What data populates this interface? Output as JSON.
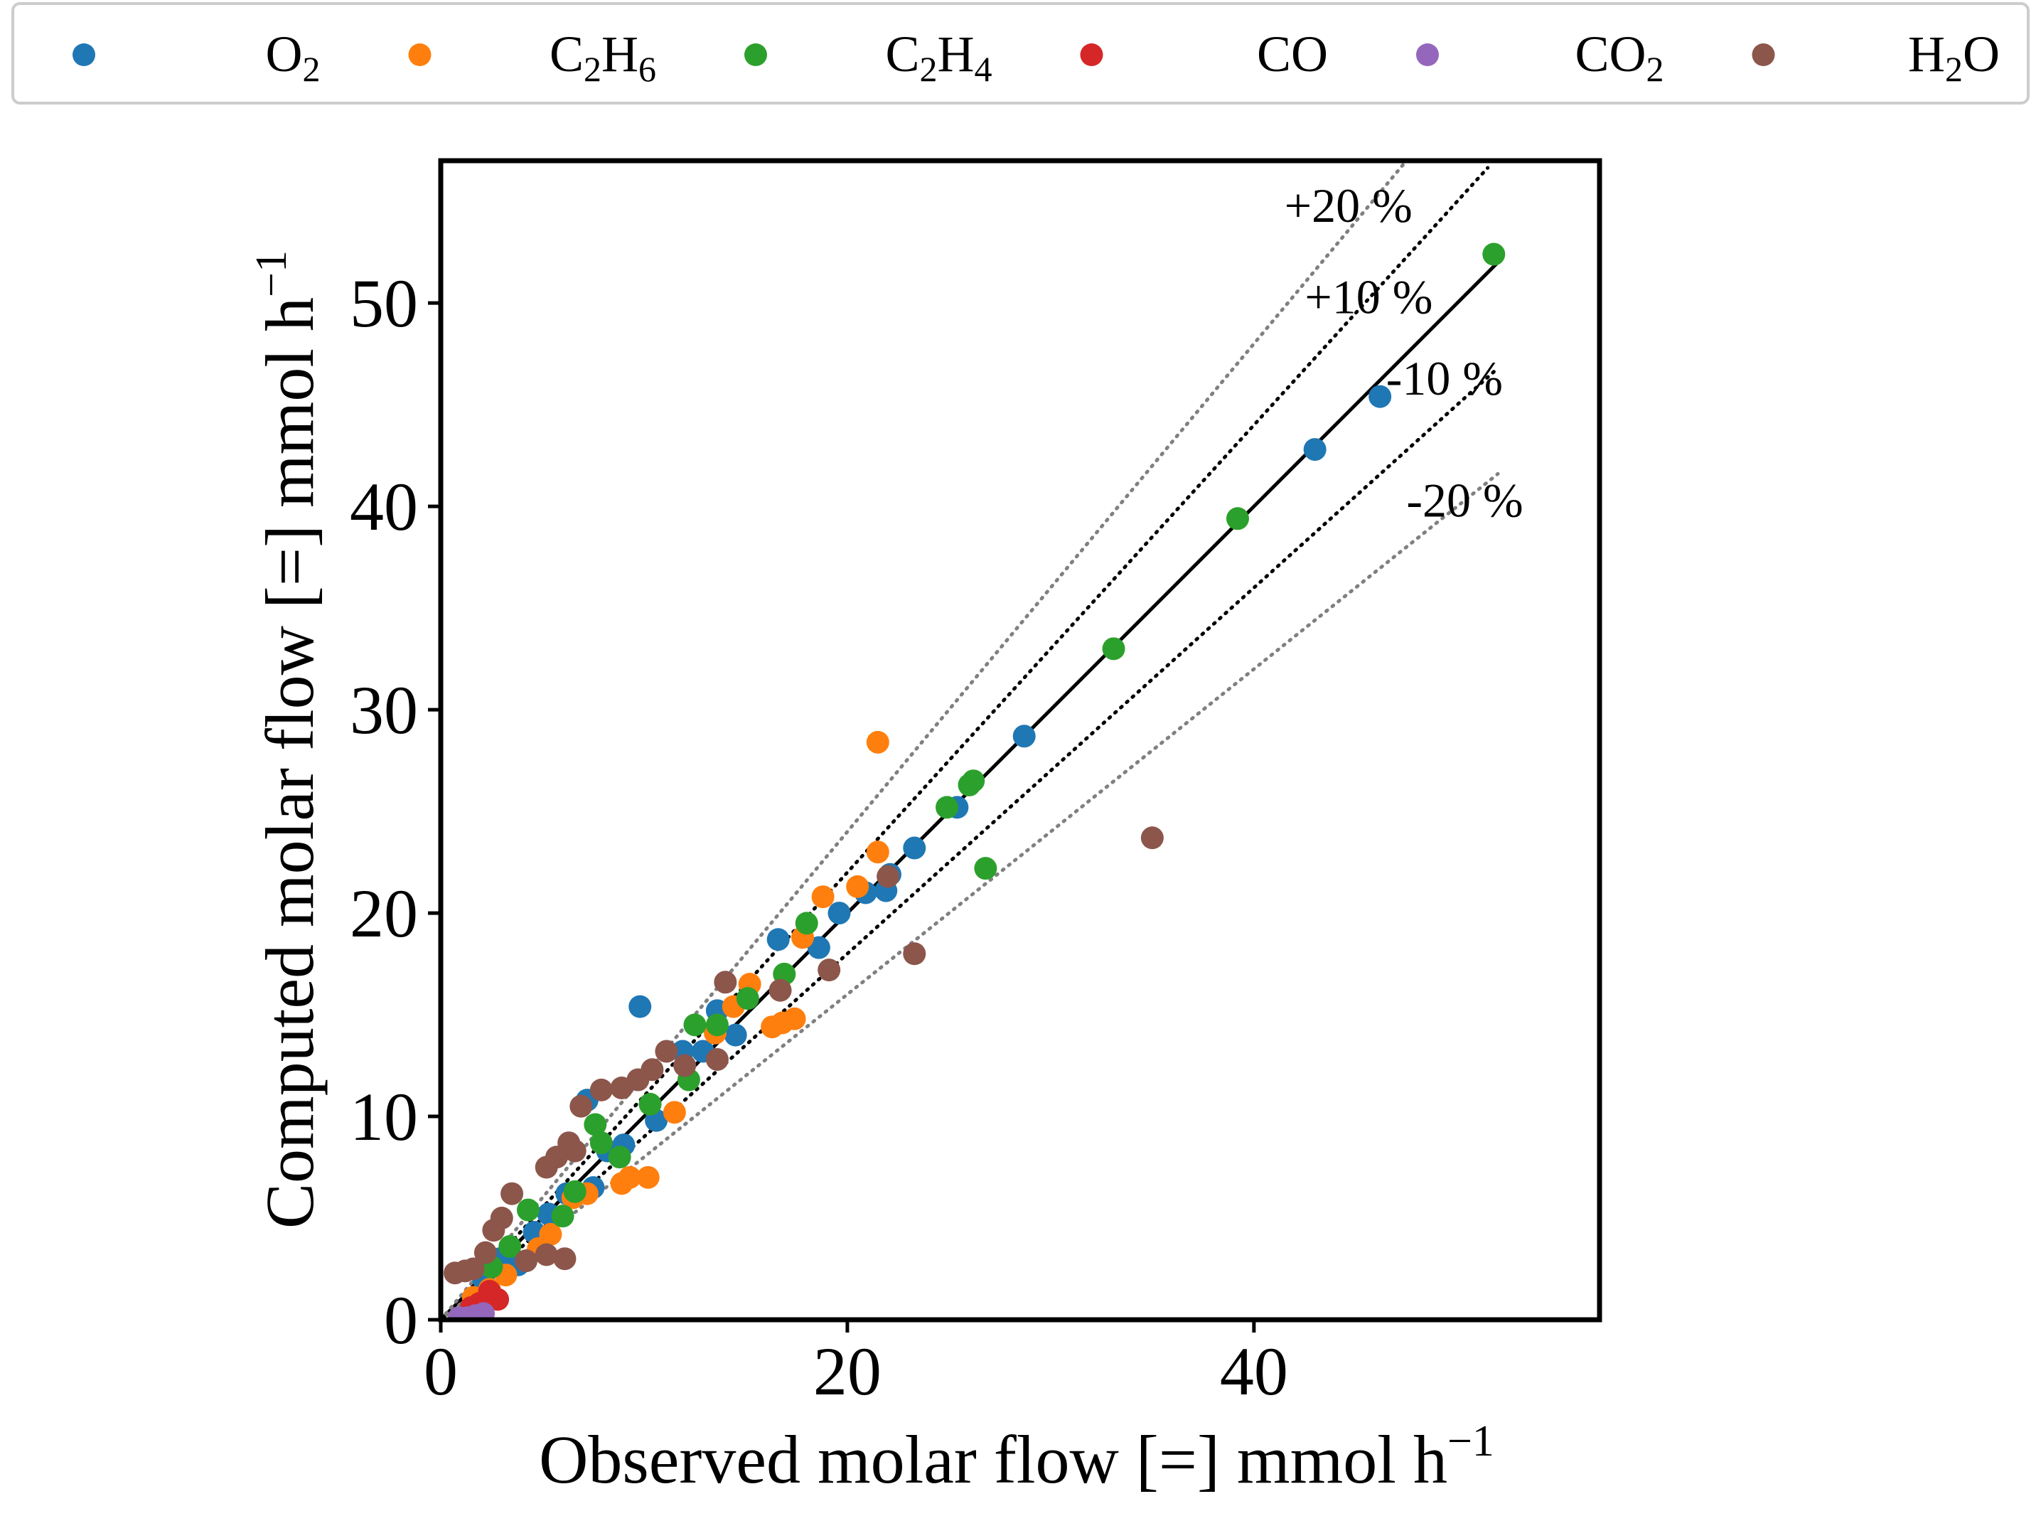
{
  "colors": {
    "O2": "#1f77b4",
    "C2H6": "#ff7f0e",
    "C2H4": "#2ca02c",
    "CO": "#d62728",
    "CO2": "#9467bd",
    "H2O": "#8c564b",
    "parity": "#000000",
    "band10": "#000000",
    "band20": "#808080"
  },
  "chart_data": {
    "type": "scatter",
    "title": "",
    "xlabel": {
      "main": "Observed molar flow [=] mmol h",
      "sup": "−1"
    },
    "ylabel": {
      "main": "Computed molar flow [=] mmol h",
      "sup": "−1"
    },
    "xlim": [
      0,
      57
    ],
    "ylim": [
      0,
      57
    ],
    "xticks": [
      0,
      20,
      40
    ],
    "yticks": [
      0,
      10,
      20,
      30,
      40,
      50
    ],
    "grid": false,
    "legend": {
      "placement": "top",
      "entries": [
        {
          "key": "O2",
          "base": "O",
          "parts": [
            [
              "O",
              ""
            ],
            [
              "2",
              "sub"
            ]
          ]
        },
        {
          "key": "C2H6",
          "parts": [
            [
              "C",
              ""
            ],
            [
              "2",
              "sub"
            ],
            [
              "H",
              ""
            ],
            [
              "6",
              "sub"
            ]
          ]
        },
        {
          "key": "C2H4",
          "parts": [
            [
              "C",
              ""
            ],
            [
              "2",
              "sub"
            ],
            [
              "H",
              ""
            ],
            [
              "4",
              "sub"
            ]
          ]
        },
        {
          "key": "CO",
          "parts": [
            [
              "CO",
              ""
            ]
          ]
        },
        {
          "key": "CO2",
          "parts": [
            [
              "CO",
              ""
            ],
            [
              "2",
              "sub"
            ]
          ]
        },
        {
          "key": "H2O",
          "parts": [
            [
              "H",
              ""
            ],
            [
              "2",
              "sub"
            ],
            [
              "O",
              ""
            ]
          ]
        }
      ]
    },
    "reference_lines": [
      {
        "name": "parity",
        "slope": 1.0,
        "style": "solid",
        "x_range": [
          0,
          52
        ]
      },
      {
        "name": "plus10",
        "slope": 1.1,
        "style": "dotted",
        "x_range": [
          0,
          51.5
        ],
        "label": "+10 %",
        "label_at": [
          42.5,
          49.5
        ]
      },
      {
        "name": "minus10",
        "slope": 0.9,
        "style": "dotted",
        "x_range": [
          0,
          52
        ],
        "label": "-10 %",
        "label_at": [
          46.5,
          45.5
        ]
      },
      {
        "name": "plus20",
        "slope": 1.2,
        "style": "dotted_gray",
        "x_range": [
          0,
          47.5
        ],
        "label": "+20 %",
        "label_at": [
          41.5,
          54.0
        ]
      },
      {
        "name": "minus20",
        "slope": 0.8,
        "style": "dotted_gray",
        "x_range": [
          0,
          52
        ],
        "label": "-20 %",
        "label_at": [
          47.5,
          39.5
        ]
      }
    ],
    "series": [
      {
        "name": "O2",
        "points": [
          [
            46.2,
            45.4
          ],
          [
            43.0,
            42.8
          ],
          [
            28.7,
            28.7
          ],
          [
            25.4,
            25.2
          ],
          [
            23.3,
            23.2
          ],
          [
            22.1,
            21.9
          ],
          [
            21.9,
            21.1
          ],
          [
            20.9,
            21.0
          ],
          [
            19.6,
            20.0
          ],
          [
            18.6,
            18.3
          ],
          [
            16.6,
            18.7
          ],
          [
            14.5,
            14.0
          ],
          [
            13.6,
            15.2
          ],
          [
            12.9,
            13.2
          ],
          [
            11.9,
            13.2
          ],
          [
            10.6,
            9.8
          ],
          [
            9.8,
            15.4
          ],
          [
            9.0,
            8.6
          ],
          [
            8.2,
            8.3
          ],
          [
            7.5,
            6.5
          ],
          [
            7.2,
            10.8
          ],
          [
            6.2,
            6.2
          ],
          [
            5.3,
            5.2
          ],
          [
            4.6,
            4.3
          ],
          [
            3.8,
            2.7
          ],
          [
            2.9,
            3.0
          ],
          [
            2.1,
            2.0
          ]
        ]
      },
      {
        "name": "C2H6",
        "points": [
          [
            21.5,
            28.4
          ],
          [
            21.5,
            23.0
          ],
          [
            20.5,
            21.3
          ],
          [
            18.8,
            20.8
          ],
          [
            17.8,
            18.8
          ],
          [
            17.4,
            14.8
          ],
          [
            16.8,
            14.6
          ],
          [
            16.3,
            14.4
          ],
          [
            15.2,
            16.5
          ],
          [
            14.4,
            15.4
          ],
          [
            13.5,
            14.1
          ],
          [
            11.5,
            10.2
          ],
          [
            10.2,
            7.0
          ],
          [
            9.3,
            7.0
          ],
          [
            8.9,
            6.7
          ],
          [
            7.2,
            6.2
          ],
          [
            6.5,
            6.0
          ],
          [
            5.4,
            4.2
          ],
          [
            4.8,
            3.5
          ],
          [
            3.2,
            2.2
          ],
          [
            2.4,
            1.5
          ],
          [
            1.6,
            1.1
          ]
        ]
      },
      {
        "name": "C2H4",
        "points": [
          [
            51.8,
            52.4
          ],
          [
            39.2,
            39.4
          ],
          [
            33.1,
            33.0
          ],
          [
            26.8,
            22.2
          ],
          [
            26.2,
            26.5
          ],
          [
            26.0,
            26.3
          ],
          [
            24.9,
            25.2
          ],
          [
            18.0,
            19.5
          ],
          [
            16.9,
            17.0
          ],
          [
            15.1,
            15.8
          ],
          [
            13.6,
            14.5
          ],
          [
            12.5,
            14.5
          ],
          [
            12.2,
            11.8
          ],
          [
            10.3,
            10.6
          ],
          [
            8.8,
            8.0
          ],
          [
            7.9,
            8.7
          ],
          [
            7.6,
            9.6
          ],
          [
            6.6,
            6.3
          ],
          [
            6.0,
            5.1
          ],
          [
            4.3,
            5.4
          ],
          [
            3.4,
            3.6
          ],
          [
            2.5,
            2.6
          ]
        ]
      },
      {
        "name": "CO",
        "points": [
          [
            2.8,
            1.0
          ],
          [
            2.4,
            1.4
          ],
          [
            1.9,
            0.8
          ],
          [
            1.5,
            0.6
          ]
        ]
      },
      {
        "name": "CO2",
        "points": [
          [
            2.1,
            0.3
          ],
          [
            1.7,
            0.2
          ],
          [
            1.3,
            0.1
          ],
          [
            0.9,
            0.1
          ]
        ]
      },
      {
        "name": "H2O",
        "points": [
          [
            35.0,
            23.7
          ],
          [
            23.3,
            18.0
          ],
          [
            22.0,
            21.8
          ],
          [
            19.1,
            17.2
          ],
          [
            16.7,
            16.2
          ],
          [
            14.0,
            16.6
          ],
          [
            13.6,
            12.8
          ],
          [
            12.0,
            12.5
          ],
          [
            11.1,
            13.2
          ],
          [
            10.4,
            12.3
          ],
          [
            9.7,
            11.8
          ],
          [
            8.9,
            11.4
          ],
          [
            7.9,
            11.3
          ],
          [
            6.9,
            10.5
          ],
          [
            6.6,
            8.3
          ],
          [
            6.3,
            8.7
          ],
          [
            5.7,
            8.0
          ],
          [
            5.2,
            7.5
          ],
          [
            6.1,
            3.0
          ],
          [
            5.2,
            3.2
          ],
          [
            4.2,
            2.9
          ],
          [
            3.5,
            6.2
          ],
          [
            3.0,
            5.0
          ],
          [
            2.6,
            4.4
          ],
          [
            2.2,
            3.3
          ],
          [
            1.6,
            2.5
          ],
          [
            1.2,
            2.4
          ],
          [
            0.7,
            2.3
          ]
        ]
      }
    ]
  }
}
